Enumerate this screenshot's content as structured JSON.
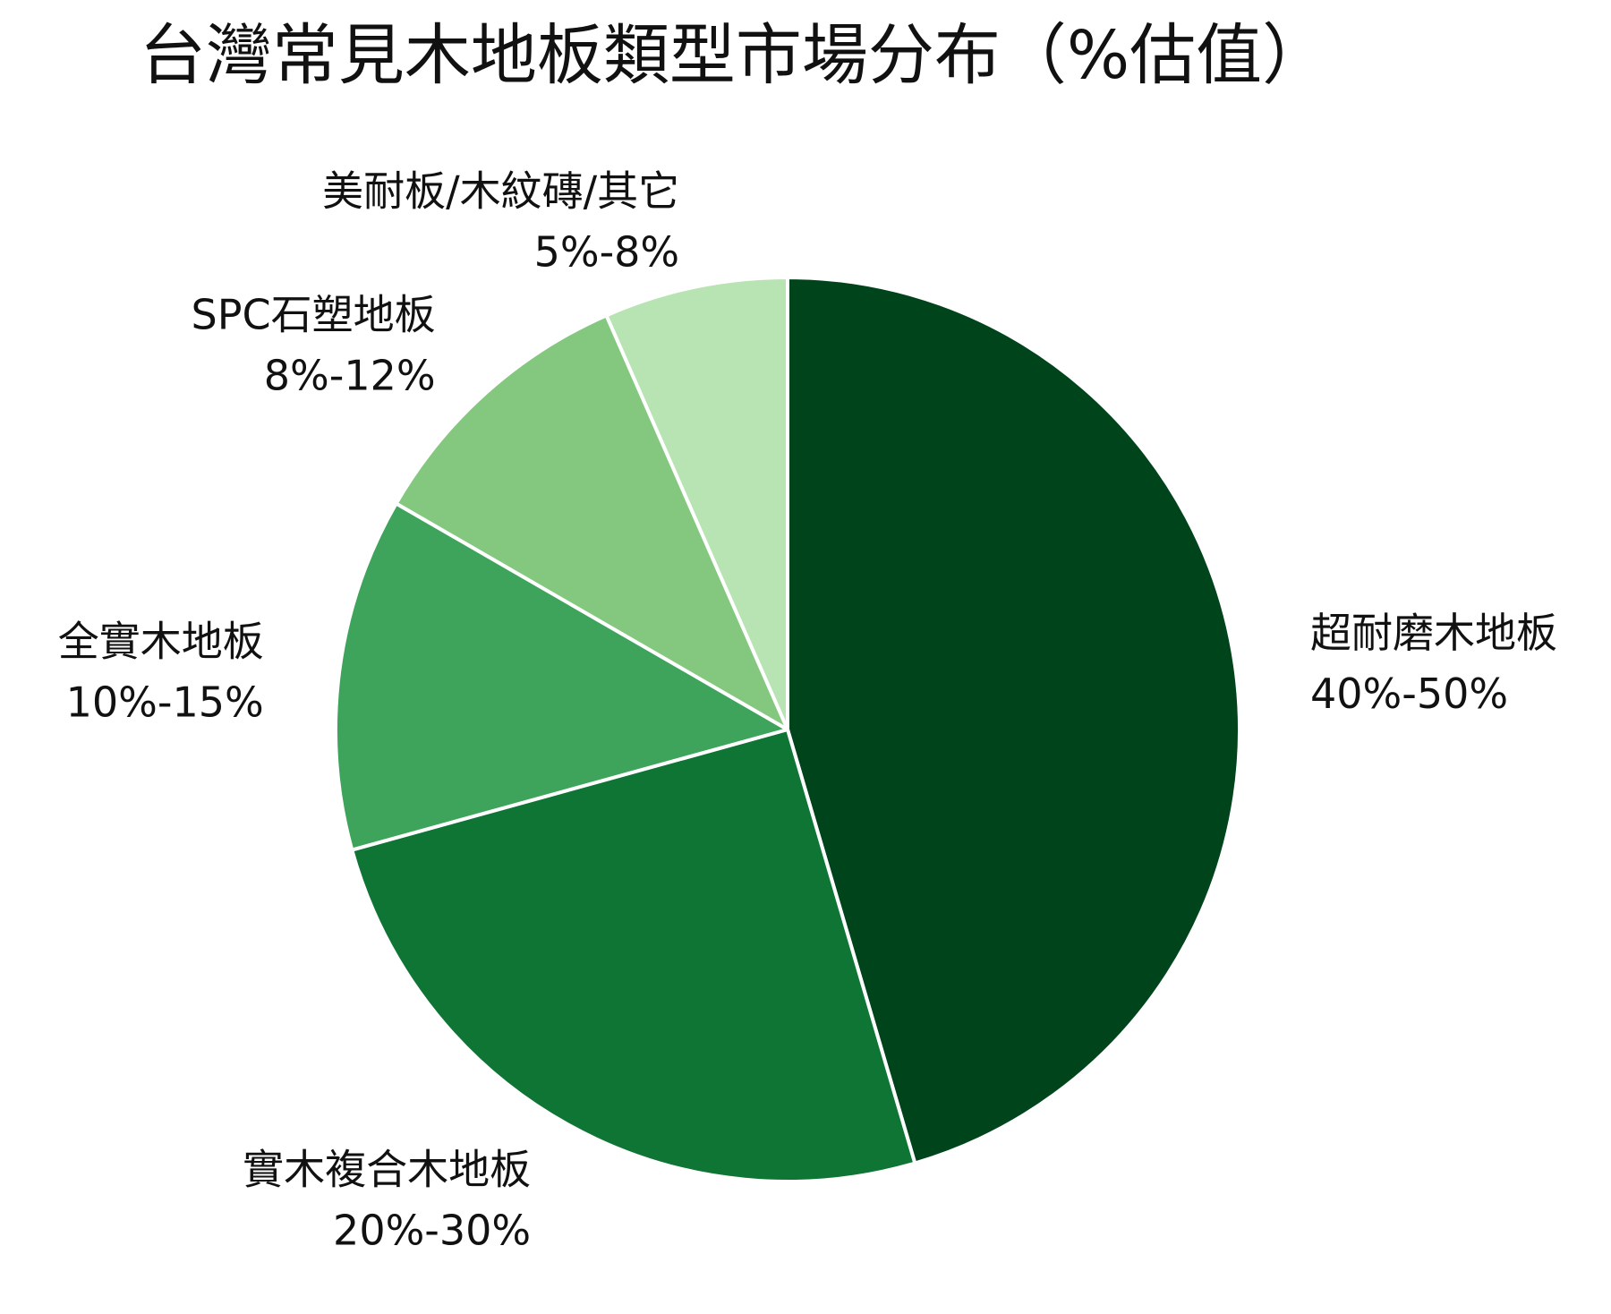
{
  "chart_data": {
    "type": "pie",
    "title": "台灣常見木地板類型市場分布（%估值）",
    "start_angle_deg": 0,
    "direction": "clockwise",
    "slices": [
      {
        "label": "超耐磨木地板",
        "range_label": "40%-50%",
        "value": 45,
        "color": "#00441b"
      },
      {
        "label": "實木複合木地板",
        "range_label": "20%-30%",
        "value": 25,
        "color": "#0f7534"
      },
      {
        "label": "全實木地板",
        "range_label": "10%-15%",
        "value": 12.5,
        "color": "#3fa45b"
      },
      {
        "label": "SPC石塑地板",
        "range_label": "8%-12%",
        "value": 10,
        "color": "#84c880"
      },
      {
        "label": "美耐板/木紋磚/其它",
        "range_label": "5%-8%",
        "value": 6.5,
        "color": "#b8e3b2"
      }
    ]
  }
}
